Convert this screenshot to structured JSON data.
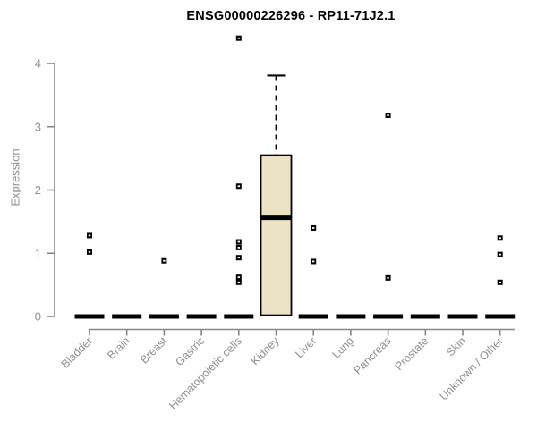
{
  "chart_data": {
    "type": "box",
    "title": "ENSG00000226296 - RP11-71J2.1",
    "ylabel": "Expression",
    "xlabel": "",
    "ylim": [
      0,
      4
    ],
    "yticks": [
      0,
      1,
      2,
      3,
      4
    ],
    "grid": false,
    "legend": "none",
    "categories": [
      "Bladder",
      "Brain",
      "Breast",
      "Gastric",
      "Hematopoietic cells",
      "Kidney",
      "Liver",
      "Lung",
      "Pancreas",
      "Prostate",
      "Skin",
      "Unknown / Other"
    ],
    "boxes": [
      {
        "category": "Bladder",
        "whisker_low": 0,
        "q1": 0,
        "median": 0,
        "q3": 0,
        "whisker_high": 0,
        "outliers": [
          1.02,
          1.28
        ]
      },
      {
        "category": "Brain",
        "whisker_low": 0,
        "q1": 0,
        "median": 0,
        "q3": 0,
        "whisker_high": 0,
        "outliers": []
      },
      {
        "category": "Breast",
        "whisker_low": 0,
        "q1": 0,
        "median": 0,
        "q3": 0,
        "whisker_high": 0,
        "outliers": [
          0.88
        ]
      },
      {
        "category": "Gastric",
        "whisker_low": 0,
        "q1": 0,
        "median": 0,
        "q3": 0,
        "whisker_high": 0,
        "outliers": []
      },
      {
        "category": "Hematopoietic cells",
        "whisker_low": 0,
        "q1": 0,
        "median": 0,
        "q3": 0,
        "whisker_high": 0,
        "outliers": [
          0.54,
          0.62,
          0.93,
          1.09,
          1.18,
          2.06,
          4.4
        ]
      },
      {
        "category": "Kidney",
        "whisker_low": 0.02,
        "q1": 0.02,
        "median": 1.56,
        "q3": 2.55,
        "whisker_high": 3.81,
        "outliers": []
      },
      {
        "category": "Liver",
        "whisker_low": 0,
        "q1": 0,
        "median": 0,
        "q3": 0,
        "whisker_high": 0,
        "outliers": [
          0.87,
          1.4
        ]
      },
      {
        "category": "Lung",
        "whisker_low": 0,
        "q1": 0,
        "median": 0,
        "q3": 0,
        "whisker_high": 0,
        "outliers": []
      },
      {
        "category": "Pancreas",
        "whisker_low": 0,
        "q1": 0,
        "median": 0,
        "q3": 0,
        "whisker_high": 0,
        "outliers": [
          0.61,
          3.18
        ]
      },
      {
        "category": "Prostate",
        "whisker_low": 0,
        "q1": 0,
        "median": 0,
        "q3": 0,
        "whisker_high": 0,
        "outliers": []
      },
      {
        "category": "Skin",
        "whisker_low": 0,
        "q1": 0,
        "median": 0,
        "q3": 0,
        "whisker_high": 0,
        "outliers": []
      },
      {
        "category": "Unknown / Other",
        "whisker_low": 0,
        "q1": 0,
        "median": 0,
        "q3": 0,
        "whisker_high": 0,
        "outliers": [
          0.54,
          0.98,
          1.24
        ]
      }
    ],
    "colors": {
      "box_fill": "#ece3c6",
      "box_stroke": "#000000",
      "median": "#000000",
      "outlier": "#000000",
      "axis": "#878787",
      "tick_label": "#8f8f8f",
      "title": "#000000",
      "background": "#ffffff"
    }
  }
}
